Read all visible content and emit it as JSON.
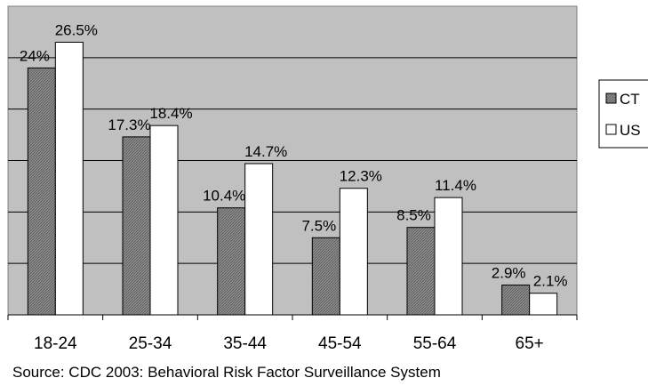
{
  "chart_data": {
    "type": "bar",
    "categories": [
      "18-24",
      "25-34",
      "35-44",
      "45-54",
      "55-64",
      "65+"
    ],
    "series": [
      {
        "name": "CT",
        "values": [
          24,
          17.3,
          10.4,
          7.5,
          8.5,
          2.9
        ]
      },
      {
        "name": "US",
        "values": [
          26.5,
          18.4,
          14.7,
          12.3,
          11.4,
          2.1
        ]
      }
    ],
    "data_labels": {
      "CT": [
        "24%",
        "17.3%",
        "10.4%",
        "7.5%",
        "8.5%",
        "2.9%"
      ],
      "US": [
        "26.5%",
        "18.4%",
        "14.7%",
        "12.3%",
        "11.4%",
        "2.1%"
      ]
    },
    "ylim": [
      0,
      30
    ],
    "grid": true,
    "legend_position": "right",
    "colors": {
      "plot_background": "#c0c0c0",
      "ct_fill": "#8c8c8c",
      "us_fill": "#ffffff",
      "outline": "#000000"
    }
  },
  "source_note": "Source: CDC 2003: Behavioral Risk Factor Surveillance System"
}
